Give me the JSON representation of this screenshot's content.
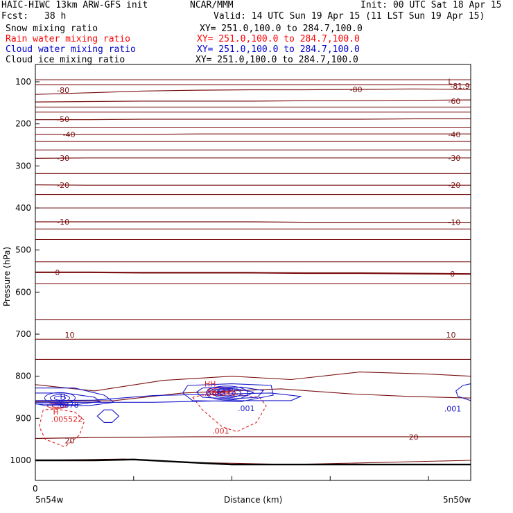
{
  "header": {
    "title": "HAIC-HIWC 13km ARW-GFS init",
    "center": "NCAR/MMM",
    "init": "Init: 00 UTC Sat 18 Apr 15",
    "fcst_label": "Fcst:",
    "fcst_value": "38 h",
    "valid": "Valid: 14 UTC Sun 19 Apr 15 (11 LST Sun 19 Apr 15)"
  },
  "fields": [
    {
      "name": "Snow mixing ratio",
      "xy": "XY= 251.0,100.0 to 284.7,100.0",
      "color": "#000000"
    },
    {
      "name": "Rain water mixing ratio",
      "xy": "XY= 251.0,100.0 to 284.7,100.0",
      "color": "#ff0000"
    },
    {
      "name": "Cloud water mixing ratio",
      "xy": "XY= 251.0,100.0 to 284.7,100.0",
      "color": "#0000cc"
    },
    {
      "name": "Cloud ice mixing ratio",
      "xy": "XY= 251.0,100.0 to 284.7,100.0",
      "color": "#000000"
    }
  ],
  "colors": {
    "temperature": "#7a1010",
    "rain": "#dd2222",
    "cloud_water": "#1a1acc",
    "ground": "#000000"
  },
  "chart_data": {
    "type": "line",
    "xlabel": "Distance (km)",
    "ylabel": "Pressure (hPa)",
    "x_left_label": "5n54w",
    "x_right_label": "5n50w",
    "x_zero_label": "0",
    "x_range": [
      0,
      443
    ],
    "x_ticks": [
      0,
      100,
      200,
      300,
      400
    ],
    "y_range": [
      1050,
      80
    ],
    "y_ticks": [
      100,
      200,
      300,
      400,
      500,
      600,
      700,
      800,
      900,
      1000
    ],
    "temperature_contours": [
      {
        "label": "-80",
        "level": -80,
        "p": [
          130,
          126,
          122,
          120,
          119,
          119,
          118,
          117,
          118
        ]
      },
      {
        "label": "-60",
        "level": -60,
        "p": [
          148,
          147,
          146,
          146,
          146,
          145,
          145,
          144,
          143
        ]
      },
      {
        "label": "-50",
        "level": -50,
        "p": [
          190,
          190,
          189,
          189,
          189,
          189,
          189,
          188,
          188
        ]
      },
      {
        "label": "-40",
        "level": -40,
        "p": [
          225,
          225,
          225,
          224,
          224,
          224,
          224,
          224,
          224
        ]
      },
      {
        "label": "-30",
        "level": -30,
        "p": [
          282,
          281,
          281,
          281,
          281,
          281,
          281,
          281,
          281
        ]
      },
      {
        "label": "-20",
        "level": -20,
        "p": [
          345,
          346,
          346,
          346,
          346,
          346,
          346,
          346,
          346
        ]
      },
      {
        "label": "-10",
        "level": -10,
        "p": [
          433,
          433,
          433,
          433,
          433,
          434,
          434,
          434,
          434
        ]
      },
      {
        "label": "0",
        "level": 0,
        "p": [
          553,
          553,
          554,
          554,
          554,
          555,
          555,
          556,
          557
        ]
      },
      {
        "label": "10",
        "level": 10,
        "p": [
          712,
          712,
          712,
          712,
          712,
          712,
          712,
          712,
          712
        ]
      },
      {
        "label": "20",
        "level": 20,
        "p": [
          948,
          946,
          945,
          944,
          944,
          944,
          944,
          944,
          944
        ]
      }
    ],
    "upper_lines_p": [
      95,
      107,
      160,
      172,
      208,
      242,
      262,
      318,
      368,
      400,
      450,
      475,
      528,
      580,
      665,
      760
    ],
    "contour_x": [
      0,
      55,
      110,
      165,
      220,
      275,
      330,
      385,
      443
    ],
    "inline_labels": [
      {
        "text": "-80",
        "x": 22,
        "p": 120,
        "color": "temperature"
      },
      {
        "text": "-80",
        "x": 320,
        "p": 118,
        "color": "temperature"
      },
      {
        "text": "-81.9",
        "x": 422,
        "p": 110,
        "color": "temperature"
      },
      {
        "text": "L",
        "x": 420,
        "p": 99,
        "color": "temperature"
      },
      {
        "text": "-60",
        "x": 420,
        "p": 146,
        "color": "temperature"
      },
      {
        "text": "-50",
        "x": 22,
        "p": 189,
        "color": "temperature"
      },
      {
        "text": "-40",
        "x": 28,
        "p": 225,
        "color": "temperature"
      },
      {
        "text": "-40",
        "x": 420,
        "p": 225,
        "color": "temperature"
      },
      {
        "text": "-30",
        "x": 22,
        "p": 281,
        "color": "temperature"
      },
      {
        "text": "-30",
        "x": 420,
        "p": 281,
        "color": "temperature"
      },
      {
        "text": "-20",
        "x": 22,
        "p": 346,
        "color": "temperature"
      },
      {
        "text": "-20",
        "x": 420,
        "p": 346,
        "color": "temperature"
      },
      {
        "text": "-10",
        "x": 22,
        "p": 433,
        "color": "temperature"
      },
      {
        "text": "-10",
        "x": 420,
        "p": 434,
        "color": "temperature"
      },
      {
        "text": "0",
        "x": 20,
        "p": 553,
        "color": "temperature"
      },
      {
        "text": "0",
        "x": 422,
        "p": 557,
        "color": "temperature"
      },
      {
        "text": "10",
        "x": 30,
        "p": 702,
        "color": "temperature"
      },
      {
        "text": "10",
        "x": 418,
        "p": 702,
        "color": "temperature"
      },
      {
        "text": "20",
        "x": 30,
        "p": 953,
        "color": "temperature"
      },
      {
        "text": "20",
        "x": 380,
        "p": 945,
        "color": "temperature"
      },
      {
        "text": "H",
        "x": 25,
        "p": 848,
        "color": "cloud_water"
      },
      {
        "text": ".6378",
        "x": 22,
        "p": 868,
        "color": "cloud_water"
      },
      {
        "text": "H",
        "x": 18,
        "p": 885,
        "color": "rain"
      },
      {
        "text": ".005522",
        "x": 16,
        "p": 902,
        "color": "rain"
      },
      {
        "text": "HH",
        "x": 172,
        "p": 818,
        "color": "rain"
      },
      {
        "text": ".000340",
        "x": 172,
        "p": 840,
        "color": "rain"
      },
      {
        "text": ".6172",
        "x": 182,
        "p": 836,
        "color": "cloud_water"
      },
      {
        "text": ".001",
        "x": 206,
        "p": 876,
        "color": "cloud_water"
      },
      {
        "text": ".001",
        "x": 180,
        "p": 930,
        "color": "rain"
      },
      {
        "text": ".001",
        "x": 416,
        "p": 877,
        "color": "cloud_water"
      }
    ]
  }
}
